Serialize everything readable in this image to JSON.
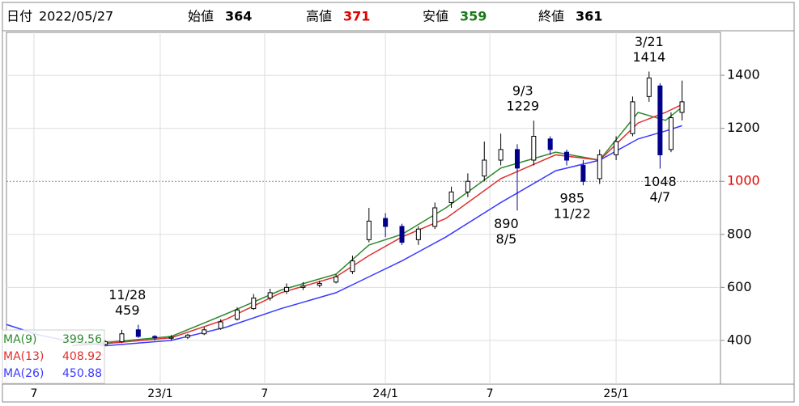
{
  "header": {
    "date_label": "日付",
    "date": "2022/05/27",
    "fields": [
      {
        "label": "始値",
        "value": 364,
        "color": "#000000"
      },
      {
        "label": "高値",
        "value": 371,
        "color": "#e00000"
      },
      {
        "label": "安値",
        "value": 359,
        "color": "#1a7a1a"
      },
      {
        "label": "終値",
        "value": 361,
        "color": "#000000"
      }
    ]
  },
  "chart_data": {
    "type": "candlestick",
    "xlim": [
      0,
      130
    ],
    "ylim": [
      235,
      1562
    ],
    "xticks": [
      {
        "value": 5,
        "label": "7"
      },
      {
        "value": 28,
        "label": "23/1"
      },
      {
        "value": 47,
        "label": "7"
      },
      {
        "value": 69,
        "label": "24/1"
      },
      {
        "value": 88,
        "label": "7"
      },
      {
        "value": 111,
        "label": "25/1"
      }
    ],
    "yticks": [
      400,
      600,
      800,
      1000,
      1200,
      1400
    ],
    "ref_line": 1000,
    "ref_color": "#e00000",
    "grid": true,
    "up_color": "#ffffff",
    "down_color": "#00008b",
    "x": [
      18,
      21,
      24,
      27,
      30,
      33,
      36,
      39,
      42,
      45,
      48,
      51,
      54,
      57,
      60,
      63,
      66,
      69,
      72,
      75,
      78,
      81,
      84,
      87,
      90,
      93,
      96,
      99,
      102,
      105,
      108,
      111,
      114,
      117,
      119,
      121,
      123
    ],
    "open": [
      385,
      395,
      440,
      415,
      408,
      412,
      425,
      445,
      480,
      520,
      560,
      585,
      600,
      608,
      620,
      660,
      780,
      860,
      830,
      780,
      830,
      920,
      960,
      1020,
      1080,
      1120,
      1080,
      1160,
      1110,
      1060,
      1010,
      1100,
      1180,
      1320,
      1360,
      1120,
      1260
    ],
    "high": [
      400,
      440,
      459,
      420,
      420,
      425,
      450,
      480,
      525,
      575,
      595,
      615,
      620,
      625,
      650,
      720,
      900,
      880,
      840,
      830,
      920,
      980,
      1030,
      1150,
      1180,
      1140,
      1229,
      1170,
      1120,
      1080,
      1120,
      1170,
      1320,
      1414,
      1370,
      1260,
      1380
    ],
    "low": [
      380,
      390,
      410,
      400,
      400,
      405,
      420,
      440,
      475,
      515,
      550,
      575,
      590,
      600,
      615,
      650,
      770,
      790,
      760,
      760,
      820,
      900,
      940,
      1000,
      1060,
      890,
      1060,
      1100,
      1060,
      985,
      990,
      1080,
      1170,
      1300,
      1048,
      1110,
      1230
    ],
    "close": [
      395,
      425,
      415,
      410,
      412,
      420,
      440,
      470,
      515,
      560,
      580,
      600,
      605,
      615,
      640,
      700,
      850,
      830,
      770,
      820,
      900,
      960,
      1000,
      1080,
      1120,
      1050,
      1170,
      1120,
      1080,
      1000,
      1100,
      1150,
      1300,
      1390,
      1100,
      1240,
      1300
    ],
    "series": [
      {
        "name": "MA(9)",
        "last": 399.56,
        "color": "#2e8b2e",
        "x": [
          12,
          18,
          30,
          40,
          50,
          60,
          66,
          72,
          80,
          90,
          100,
          108,
          115,
          120,
          123
        ],
        "values": [
          382,
          392,
          415,
          500,
          590,
          650,
          760,
          800,
          900,
          1050,
          1110,
          1080,
          1260,
          1230,
          1280
        ]
      },
      {
        "name": "MA(13)",
        "last": 408.92,
        "color": "#e03030",
        "x": [
          12,
          18,
          30,
          40,
          50,
          60,
          66,
          72,
          80,
          90,
          100,
          108,
          115,
          120,
          123
        ],
        "values": [
          380,
          388,
          410,
          480,
          580,
          640,
          720,
          790,
          860,
          1010,
          1100,
          1080,
          1220,
          1260,
          1290
        ]
      },
      {
        "name": "MA(26)",
        "last": 450.88,
        "color": "#3a3aff",
        "x": [
          0,
          6,
          12,
          18,
          30,
          40,
          50,
          60,
          66,
          72,
          80,
          90,
          100,
          108,
          115,
          120,
          123
        ],
        "values": [
          460,
          420,
          395,
          380,
          400,
          450,
          520,
          580,
          640,
          700,
          790,
          920,
          1040,
          1080,
          1160,
          1190,
          1210
        ]
      }
    ],
    "annotations": [
      {
        "x": 22,
        "date": "11/28",
        "value": 459,
        "position": "above"
      },
      {
        "x": 94,
        "date": "9/3",
        "value": 1229,
        "position": "above"
      },
      {
        "x": 91,
        "date": "8/5",
        "value": 890,
        "position": "below"
      },
      {
        "x": 103,
        "date": "11/22",
        "value": 985,
        "position": "below"
      },
      {
        "x": 117,
        "date": "3/21",
        "value": 1414,
        "position": "above"
      },
      {
        "x": 119,
        "date": "4/7",
        "value": 1048,
        "position": "below"
      }
    ]
  }
}
